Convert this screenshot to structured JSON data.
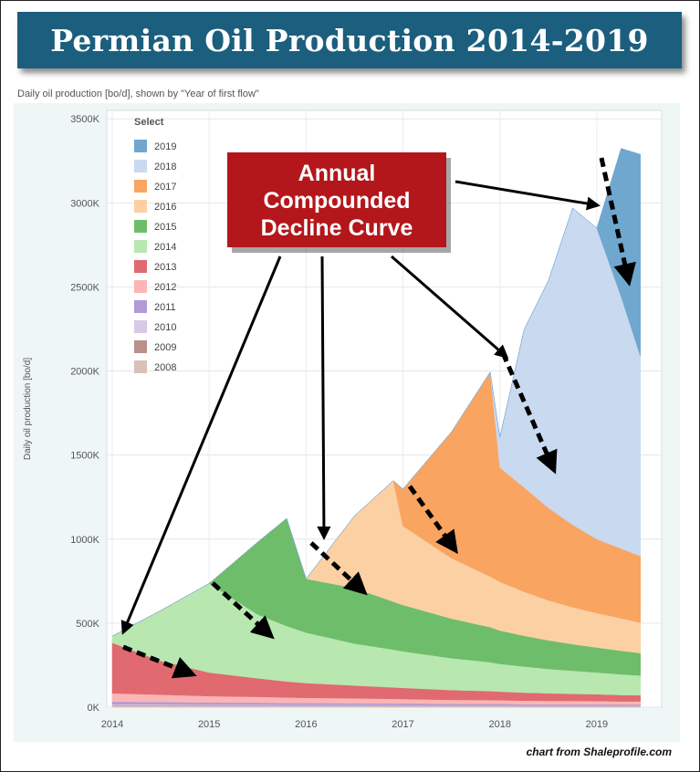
{
  "banner": {
    "title": "Permian Oil Production 2014-2019"
  },
  "subtitle": "Daily oil production [bo/d], shown by \"Year of first flow\"",
  "credit": "chart from Shaleprofile.com",
  "callout": {
    "lines": [
      "Annual",
      "Compounded",
      "Decline Curve"
    ],
    "bg_color": "#b3171b",
    "text_color": "#ffffff"
  },
  "chart_data": {
    "type": "area",
    "stacked": true,
    "ylabel": "Daily oil production [bo/d]",
    "x_ticks": [
      "2014",
      "2015",
      "2016",
      "2017",
      "2018",
      "2019"
    ],
    "y_ticks": [
      "0K",
      "500K",
      "1000K",
      "1500K",
      "2000K",
      "2500K",
      "3000K",
      "3500K"
    ],
    "ylim": [
      0,
      3550
    ],
    "xlim": [
      2014.0,
      2019.5
    ],
    "legend": {
      "title": "Select",
      "placement": "top-left"
    },
    "x": [
      2014.0,
      2014.5,
      2015.0,
      2015.5,
      2015.8,
      2016.0,
      2016.5,
      2016.9,
      2017.0,
      2017.5,
      2017.9,
      2018.0,
      2018.25,
      2018.5,
      2018.75,
      2019.0,
      2019.25,
      2019.45
    ],
    "series": [
      {
        "name": "2008",
        "color": "#d9c1b8",
        "values": [
          10,
          9,
          8,
          8,
          7,
          7,
          7,
          6,
          6,
          6,
          6,
          6,
          5,
          5,
          5,
          5,
          5,
          5
        ]
      },
      {
        "name": "2009",
        "color": "#b9928c",
        "values": [
          3,
          3,
          3,
          3,
          3,
          3,
          3,
          3,
          3,
          2,
          2,
          2,
          2,
          2,
          2,
          2,
          2,
          2
        ]
      },
      {
        "name": "2010",
        "color": "#d8c9e6",
        "values": [
          5,
          5,
          4,
          4,
          4,
          4,
          4,
          4,
          4,
          3,
          3,
          3,
          3,
          3,
          3,
          3,
          3,
          3
        ]
      },
      {
        "name": "2011",
        "color": "#b29ad6",
        "values": [
          15,
          14,
          13,
          12,
          11,
          11,
          10,
          10,
          10,
          9,
          9,
          9,
          8,
          8,
          8,
          8,
          7,
          7
        ]
      },
      {
        "name": "2012",
        "color": "#fbb5b6",
        "values": [
          50,
          44,
          38,
          35,
          33,
          31,
          29,
          27,
          26,
          24,
          23,
          22,
          21,
          20,
          20,
          19,
          18,
          18
        ]
      },
      {
        "name": "2013",
        "color": "#e06a70",
        "values": [
          300,
          200,
          140,
          110,
          95,
          88,
          76,
          68,
          66,
          58,
          53,
          51,
          48,
          45,
          42,
          40,
          38,
          36
        ]
      },
      {
        "name": "2014",
        "color": "#b8e7b0",
        "values": [
          40,
          300,
          530,
          380,
          330,
          300,
          250,
          225,
          218,
          190,
          172,
          165,
          155,
          145,
          137,
          130,
          123,
          118
        ]
      },
      {
        "name": "2015",
        "color": "#6ebd6a",
        "values": [
          0,
          0,
          0,
          430,
          640,
          320,
          330,
          285,
          275,
          235,
          208,
          198,
          183,
          170,
          158,
          148,
          140,
          133
        ]
      },
      {
        "name": "2016",
        "color": "#fbd0a3",
        "values": [
          0,
          0,
          0,
          0,
          0,
          0,
          430,
          720,
          470,
          360,
          302,
          290,
          262,
          238,
          220,
          205,
          193,
          182
        ]
      },
      {
        "name": "2017",
        "color": "#f9a460",
        "values": [
          0,
          0,
          0,
          0,
          0,
          0,
          0,
          0,
          220,
          750,
          1215,
          680,
          620,
          550,
          490,
          440,
          415,
          395
        ]
      },
      {
        "name": "2018",
        "color": "#c9d9ef",
        "values": [
          0,
          0,
          0,
          0,
          0,
          0,
          0,
          0,
          0,
          0,
          0,
          180,
          940,
          1350,
          1885,
          1850,
          1500,
          1190
        ]
      },
      {
        "name": "2019",
        "color": "#6fa7cf",
        "values": [
          0,
          0,
          0,
          0,
          0,
          0,
          0,
          0,
          0,
          0,
          0,
          0,
          0,
          0,
          0,
          0,
          880,
          1200
        ]
      }
    ]
  }
}
